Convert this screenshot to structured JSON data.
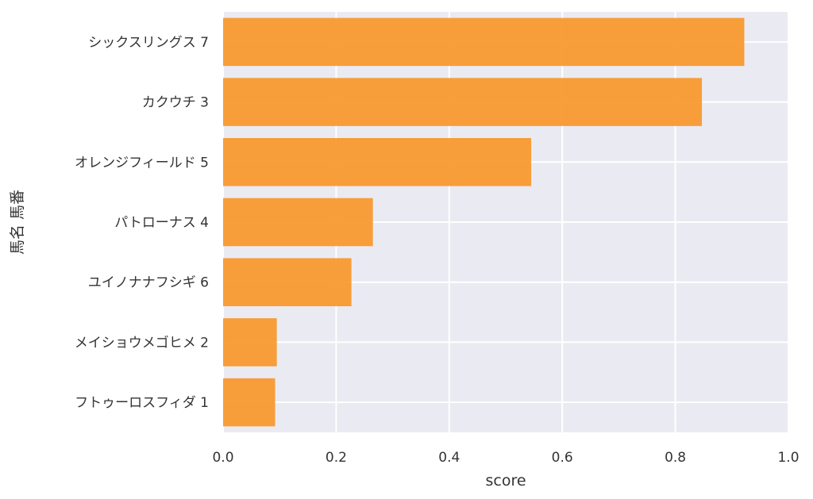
{
  "chart_data": {
    "type": "bar",
    "orientation": "horizontal",
    "categories": [
      "シックスリングス 7",
      "カクウチ 3",
      "オレンジフィールド 5",
      "パトローナス 4",
      "ユイノナナフシギ 6",
      "メイショウメゴヒメ 2",
      "フトゥーロスフィダ 1"
    ],
    "values": [
      0.922,
      0.847,
      0.545,
      0.265,
      0.227,
      0.095,
      0.092
    ],
    "xlabel": "score",
    "ylabel": "馬名 馬番",
    "xlim": [
      0,
      1.0
    ],
    "xticks": [
      "0.0",
      "0.2",
      "0.4",
      "0.6",
      "0.8",
      "1.0"
    ],
    "grid": true,
    "colors": {
      "bar": "#f7962a",
      "background": "#eaeaf2",
      "grid": "#ffffff"
    }
  }
}
